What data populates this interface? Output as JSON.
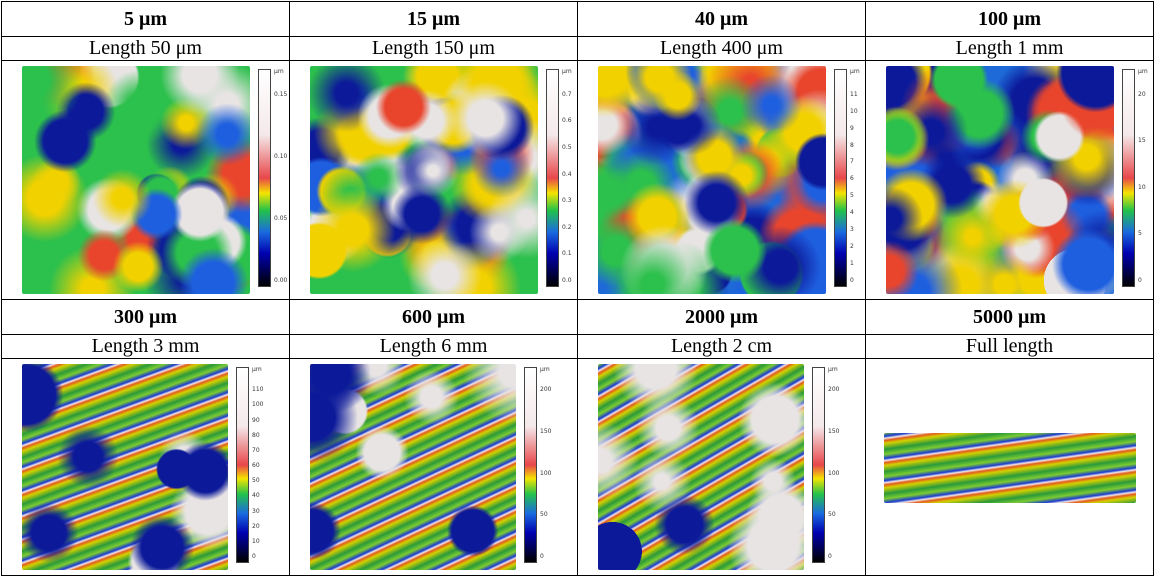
{
  "table": {
    "rows": [
      [
        {
          "scale": "5 μm",
          "length": "Length 50 μm",
          "colorbar": {
            "unit": "μm",
            "ticks": [
              "0.15",
              "0.10",
              "0.05",
              "0.00"
            ]
          }
        },
        {
          "scale": "15 μm",
          "length": "Length 150 μm",
          "colorbar": {
            "unit": "μm",
            "ticks": [
              "0.7",
              "0.6",
              "0.5",
              "0.4",
              "0.3",
              "0.2",
              "0.1",
              "0.0"
            ]
          }
        },
        {
          "scale": "40 μm",
          "length": "Length 400 μm",
          "colorbar": {
            "unit": "μm",
            "ticks": [
              "11",
              "10",
              "9",
              "8",
              "7",
              "6",
              "5",
              "4",
              "3",
              "2",
              "1",
              "0"
            ]
          }
        },
        {
          "scale": "100 μm",
          "length": "Length 1 mm",
          "colorbar": {
            "unit": "μm",
            "ticks": [
              "20",
              "15",
              "10",
              "5",
              "0"
            ]
          }
        }
      ],
      [
        {
          "scale": "300 μm",
          "length": "Length 3 mm",
          "colorbar": {
            "unit": "μm",
            "ticks": [
              "110",
              "100",
              "90",
              "80",
              "70",
              "60",
              "50",
              "40",
              "30",
              "20",
              "10",
              "0"
            ]
          }
        },
        {
          "scale": "600 μm",
          "length": "Length 6 mm",
          "colorbar": {
            "unit": "μm",
            "ticks": [
              "200",
              "150",
              "100",
              "50",
              "0"
            ]
          }
        },
        {
          "scale": "2000 μm",
          "length": "Length 2 cm",
          "colorbar": {
            "unit": "μm",
            "ticks": [
              "200",
              "150",
              "100",
              "50",
              "0"
            ]
          }
        },
        {
          "scale": "5000 μm",
          "length": "Full length"
        }
      ]
    ]
  }
}
